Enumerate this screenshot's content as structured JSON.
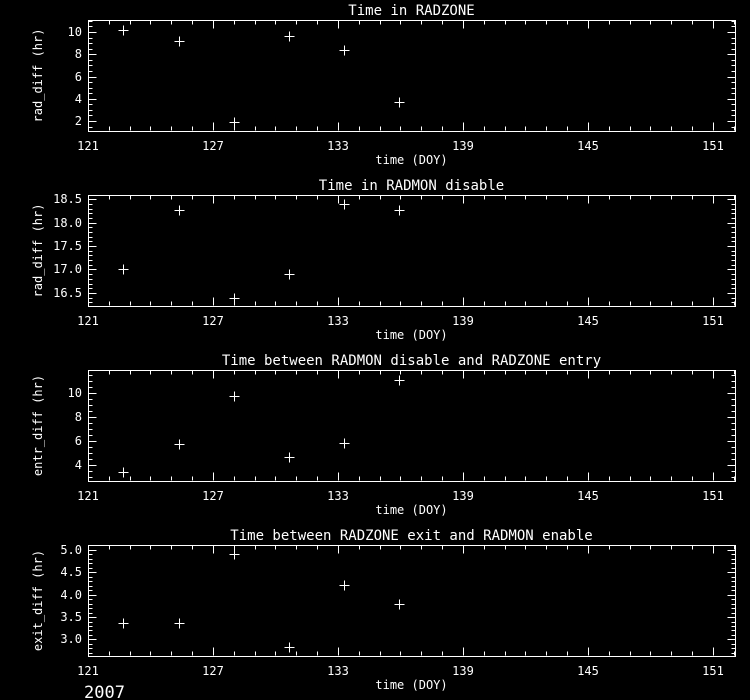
{
  "year_label": "2007",
  "colors": {
    "background": "#000000",
    "foreground": "#ffffff"
  },
  "chart_data": [
    {
      "type": "scatter",
      "title": "Time in RADZONE",
      "xlabel": "time (DOY)",
      "ylabel": "rad_diff (hr)",
      "marker": "+",
      "x": [
        122.7,
        125.35,
        128.0,
        130.65,
        133.3,
        135.95
      ],
      "y": [
        10.15,
        9.2,
        1.93,
        9.6,
        8.35,
        3.7
      ],
      "xlim": [
        121,
        152.06
      ],
      "ylim": [
        1.1,
        11.08
      ],
      "x_ticks": [
        121,
        127,
        133,
        139,
        145,
        151
      ],
      "x_tick_labels": [
        "121",
        "127",
        "133",
        "139",
        "145",
        "151"
      ],
      "x_minor_step": 1,
      "y_ticks": [
        2,
        4,
        6,
        8,
        10
      ],
      "y_tick_labels": [
        "2",
        "4",
        "6",
        "8",
        "10"
      ],
      "y_minor_step": 0.5,
      "grid": false
    },
    {
      "type": "scatter",
      "title": "Time in RADMON disable",
      "xlabel": "time (DOY)",
      "ylabel": "rad_diff (hr)",
      "marker": "+",
      "x": [
        122.7,
        125.35,
        128.0,
        130.65,
        133.3,
        135.95
      ],
      "y": [
        17.02,
        18.27,
        16.4,
        16.91,
        18.39,
        18.27
      ],
      "xlim": [
        121,
        152.06
      ],
      "ylim": [
        16.22,
        18.59
      ],
      "x_ticks": [
        121,
        127,
        133,
        139,
        145,
        151
      ],
      "x_tick_labels": [
        "121",
        "127",
        "133",
        "139",
        "145",
        "151"
      ],
      "x_minor_step": 1,
      "y_ticks": [
        16.5,
        17.0,
        17.5,
        18.0,
        18.5
      ],
      "y_tick_labels": [
        "16.5",
        "17.0",
        "17.5",
        "18.0",
        "18.5"
      ],
      "y_minor_step": 0.1,
      "grid": false
    },
    {
      "type": "scatter",
      "title": "Time between RADMON disable and RADZONE entry",
      "xlabel": "time (DOY)",
      "ylabel": "entr_diff (hr)",
      "marker": "+",
      "x": [
        122.7,
        125.35,
        128.0,
        130.65,
        133.3,
        135.95
      ],
      "y": [
        3.37,
        5.7,
        9.75,
        4.62,
        5.78,
        11.05
      ],
      "xlim": [
        121,
        152.06
      ],
      "ylim": [
        2.64,
        11.89
      ],
      "x_ticks": [
        121,
        127,
        133,
        139,
        145,
        151
      ],
      "x_tick_labels": [
        "121",
        "127",
        "133",
        "139",
        "145",
        "151"
      ],
      "x_minor_step": 1,
      "y_ticks": [
        4,
        6,
        8,
        10
      ],
      "y_tick_labels": [
        "4",
        "6",
        "8",
        "10"
      ],
      "y_minor_step": 0.5,
      "grid": false
    },
    {
      "type": "scatter",
      "title": "Time between RADZONE exit and RADMON enable",
      "xlabel": "time (DOY)",
      "ylabel": "exit_diff (hr)",
      "marker": "+",
      "x": [
        122.7,
        125.35,
        128.0,
        130.65,
        133.3,
        135.95
      ],
      "y": [
        3.36,
        3.36,
        4.9,
        2.82,
        4.21,
        3.79
      ],
      "xlim": [
        121,
        152.06
      ],
      "ylim": [
        2.63,
        5.11
      ],
      "x_ticks": [
        121,
        127,
        133,
        139,
        145,
        151
      ],
      "x_tick_labels": [
        "121",
        "127",
        "133",
        "139",
        "145",
        "151"
      ],
      "x_minor_step": 1,
      "y_ticks": [
        3.0,
        3.5,
        4.0,
        4.5,
        5.0
      ],
      "y_tick_labels": [
        "3.0",
        "3.5",
        "4.0",
        "4.5",
        "5.0"
      ],
      "y_minor_step": 0.1,
      "grid": false
    }
  ]
}
